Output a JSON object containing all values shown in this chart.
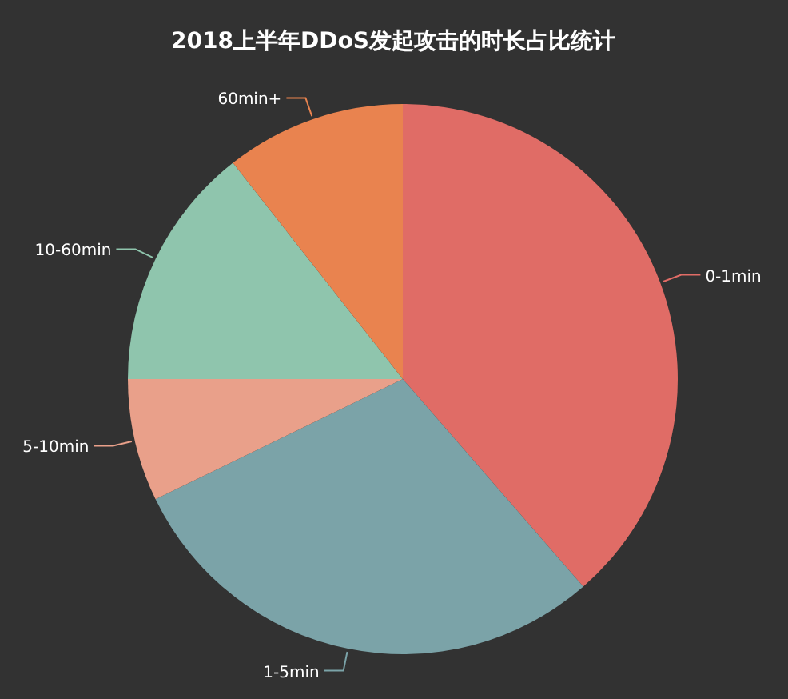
{
  "chart_data": {
    "type": "pie",
    "title": "2018上半年DDoS发起攻击的时长占比统计",
    "categories": [
      "0-1min",
      "1-5min",
      "5-10min",
      "10-60min",
      "60min+"
    ],
    "values": [
      38.6,
      29.2,
      7.2,
      14.4,
      10.6
    ],
    "colors": [
      "#e06c66",
      "#7ba3a8",
      "#e9a08a",
      "#8fc5ad",
      "#e9834f"
    ]
  }
}
